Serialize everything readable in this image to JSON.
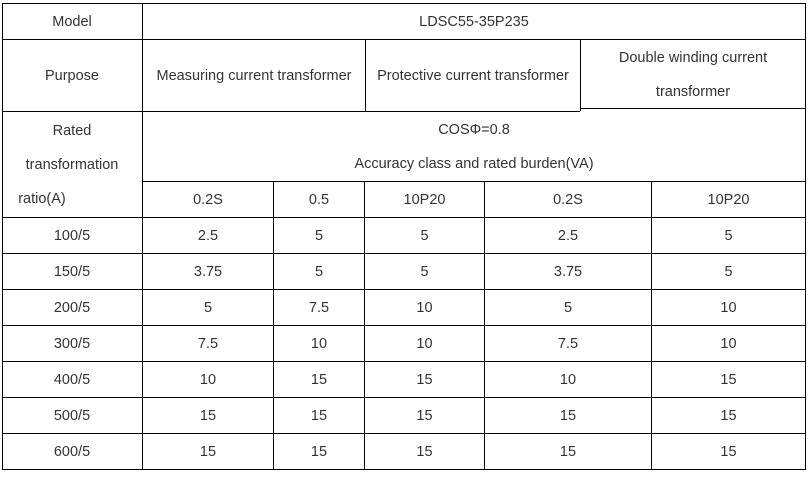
{
  "table": {
    "model_label": "Model",
    "model_value": "LDSC55-35P235",
    "purpose_label": "Purpose",
    "purpose_measuring": "Measuring current transformer",
    "purpose_protective": "Protective current transformer",
    "purpose_double_line1": "Double winding current",
    "purpose_double_line2": "transformer",
    "ratio_label_line1": "Rated",
    "ratio_label_line2": "transformation",
    "ratio_label_line3": "ratio(A)",
    "cos_phi": "COSΦ=0.8",
    "accuracy_label": "Accuracy class and rated burden(VA)",
    "classes": [
      "0.2S",
      "0.5",
      "10P20",
      "0.2S",
      "10P20"
    ],
    "rows": [
      {
        "ratio": "100/5",
        "values": [
          "2.5",
          "5",
          "5",
          "2.5",
          "5"
        ]
      },
      {
        "ratio": "150/5",
        "values": [
          "3.75",
          "5",
          "5",
          "3.75",
          "5"
        ]
      },
      {
        "ratio": "200/5",
        "values": [
          "5",
          "7.5",
          "10",
          "5",
          "10"
        ]
      },
      {
        "ratio": "300/5",
        "values": [
          "7.5",
          "10",
          "10",
          "7.5",
          "10"
        ]
      },
      {
        "ratio": "400/5",
        "values": [
          "10",
          "15",
          "15",
          "10",
          "15"
        ]
      },
      {
        "ratio": "500/5",
        "values": [
          "15",
          "15",
          "15",
          "15",
          "15"
        ]
      },
      {
        "ratio": "600/5",
        "values": [
          "15",
          "15",
          "15",
          "15",
          "15"
        ]
      }
    ]
  }
}
